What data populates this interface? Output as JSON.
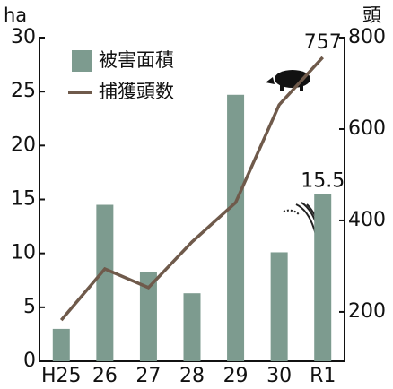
{
  "chart_data": {
    "type": "bar-line",
    "y_label": "ha",
    "y2_label": "頭",
    "categories": [
      "H25",
      "26",
      "27",
      "28",
      "29",
      "30",
      "R1"
    ],
    "ylim": [
      0,
      30
    ],
    "yticks": [
      0,
      5,
      10,
      15,
      20,
      25,
      30
    ],
    "y2lim": [
      92,
      800
    ],
    "y2ticks": [
      200,
      400,
      600,
      800
    ],
    "series": [
      {
        "name": "被害面積",
        "type": "bar",
        "color": "#7d9b8f",
        "values": [
          3.0,
          14.5,
          8.3,
          6.3,
          24.7,
          10.1,
          15.5
        ]
      },
      {
        "name": "捕獲頭数",
        "type": "line",
        "axis": "y2",
        "color": "#6f5a4b",
        "values": [
          182,
          294,
          253,
          353,
          439,
          653,
          757
        ]
      }
    ]
  }
}
